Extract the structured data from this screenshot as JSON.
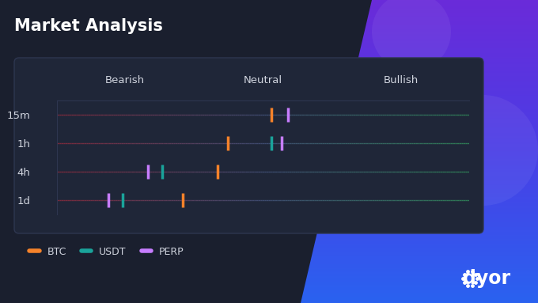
{
  "chart_data": {
    "type": "scatter",
    "title": "Market Analysis",
    "orientation": "horizontal",
    "categories": [
      "15m",
      "1h",
      "4h",
      "1d"
    ],
    "series": [
      {
        "name": "BTC",
        "color": "#f5822a",
        "values": [
          4,
          -17,
          -22,
          -39
        ]
      },
      {
        "name": "USDT",
        "color": "#1aa39a",
        "values": [
          null,
          4,
          -49,
          -68
        ]
      },
      {
        "name": "PERP",
        "color": "#c77dff",
        "values": [
          12,
          9,
          -56,
          -75
        ]
      }
    ],
    "marker": "|",
    "xlim": [
      -100,
      100
    ],
    "xticks": [
      {
        "value": -67,
        "label": "Bearish"
      },
      {
        "value": 0,
        "label": "Neutral"
      },
      {
        "value": 67,
        "label": "Bullish"
      }
    ],
    "legend": "lower left",
    "annotations": [
      "dyor"
    ]
  }
}
